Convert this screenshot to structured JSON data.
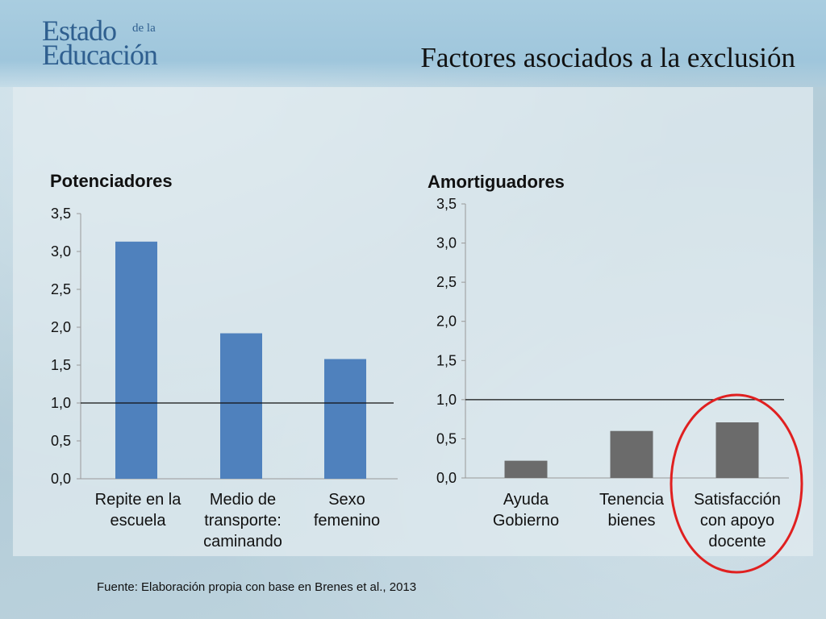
{
  "logo": {
    "line1": "Estado",
    "small": "de la",
    "line2": "Educación"
  },
  "title": "Factores asociados a la exclusión",
  "footer": "Fuente: Elaboración propia con base en Brenes et al., 2013",
  "chart_data": [
    {
      "type": "bar",
      "title": "Potenciadores",
      "categories": [
        "Repite en la escuela",
        "Medio de transporte: caminando",
        "Sexo femenino"
      ],
      "category_lines": [
        [
          "Repite en la",
          "escuela"
        ],
        [
          "Medio de",
          "transporte:",
          "caminando"
        ],
        [
          "Sexo",
          "femenino"
        ]
      ],
      "values": [
        3.13,
        1.92,
        1.58
      ],
      "ylim": [
        0,
        3.5
      ],
      "yticks": [
        "0,0",
        "0,5",
        "1,0",
        "1,5",
        "2,0",
        "2,5",
        "3,0",
        "3,5"
      ],
      "reference_line": 1.0,
      "bar_color": "#4f81bd"
    },
    {
      "type": "bar",
      "title": "Amortiguadores",
      "categories": [
        "Ayuda Gobierno",
        "Tenencia bienes",
        "Satisfacción con apoyo docente"
      ],
      "category_lines": [
        [
          "Ayuda",
          "Gobierno"
        ],
        [
          "Tenencia",
          "bienes"
        ],
        [
          "Satisfacción",
          "con apoyo",
          "docente"
        ]
      ],
      "values": [
        0.22,
        0.6,
        0.71
      ],
      "ylim": [
        0,
        3.5
      ],
      "yticks": [
        "0,0",
        "0,5",
        "1,0",
        "1,5",
        "2,0",
        "2,5",
        "3,0",
        "3,5"
      ],
      "reference_line": 1.0,
      "bar_color": "#6b6b6b",
      "highlight_color": "#e02020"
    }
  ]
}
